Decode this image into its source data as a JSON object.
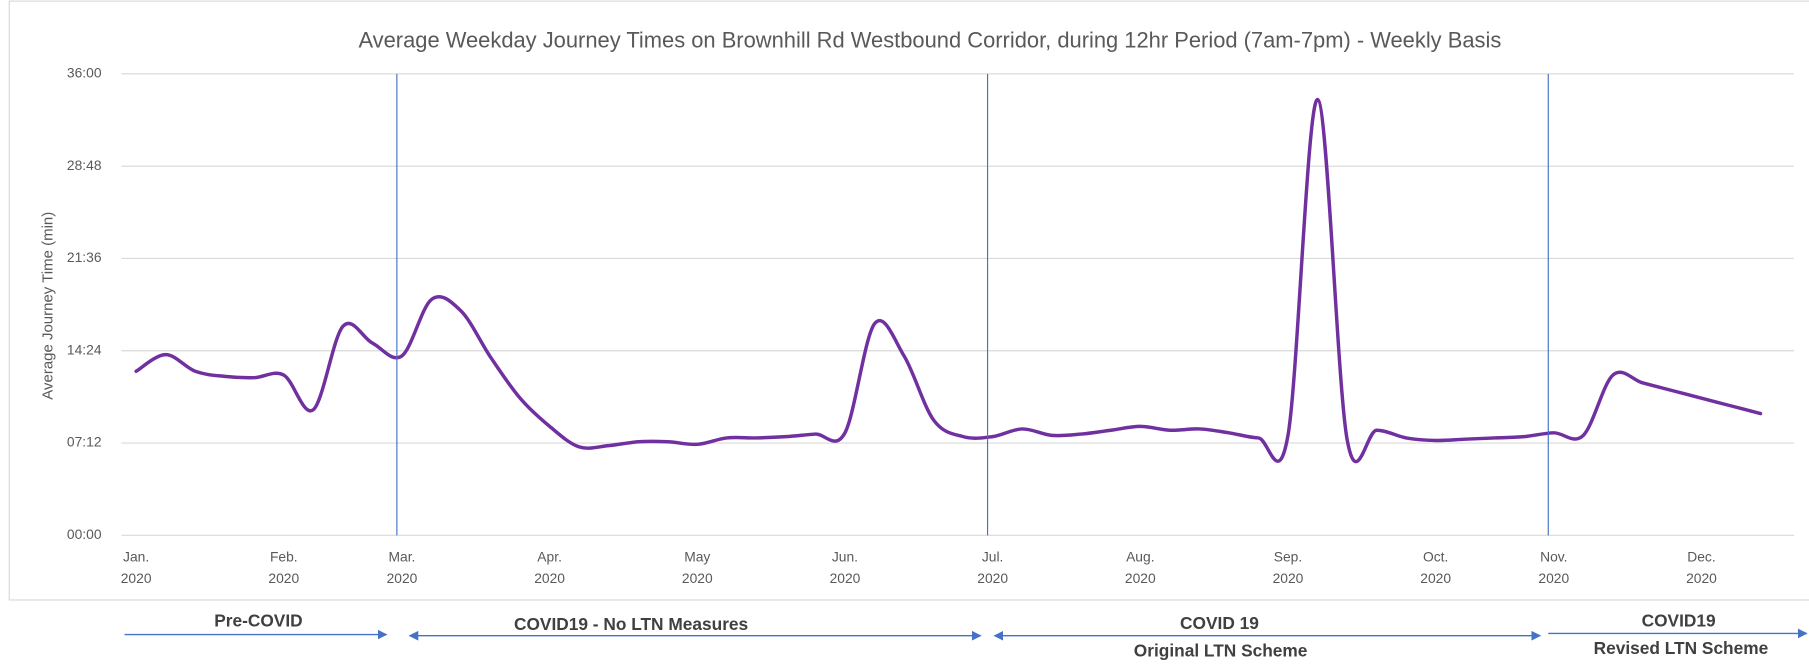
{
  "chart_data": {
    "type": "line",
    "title": "Average Weekday Journey Times on Brownhill Rd Westbound Corridor, during 12hr Period (7am-7pm) - Weekly Basis",
    "y_label": "Average Journey Time (min)",
    "categories": [
      "Jan. 2020",
      null,
      null,
      null,
      null,
      "Feb. 2020",
      null,
      null,
      null,
      "Mar. 2020",
      null,
      null,
      null,
      null,
      "Apr. 2020",
      null,
      null,
      null,
      null,
      "May 2020",
      null,
      null,
      null,
      null,
      "Jun. 2020",
      null,
      null,
      null,
      null,
      "Jul. 2020",
      null,
      null,
      null,
      null,
      "Aug. 2020",
      null,
      null,
      null,
      null,
      "Sep. 2020",
      null,
      null,
      null,
      null,
      "Oct. 2020",
      null,
      null,
      null,
      "Nov. 2020",
      null,
      null,
      null,
      null,
      "Dec. 2020",
      null,
      null
    ],
    "series": [
      {
        "name": "Average Journey Time",
        "color": "#7030a0",
        "values": [
          12.8,
          14.1,
          12.8,
          12.4,
          12.3,
          12.5,
          9.8,
          16.3,
          15.0,
          14.0,
          18.4,
          17.5,
          13.9,
          10.7,
          8.5,
          6.9,
          7.0,
          7.3,
          7.3,
          7.1,
          7.6,
          7.6,
          7.7,
          7.9,
          8.0,
          16.5,
          14.0,
          9.0,
          7.7,
          7.7,
          8.3,
          7.8,
          7.9,
          8.2,
          8.5,
          8.2,
          8.3,
          8.0,
          7.6,
          7.8,
          34.0,
          7.5,
          8.2,
          7.6,
          7.4,
          7.5,
          7.6,
          7.7,
          8.0,
          7.8,
          12.5,
          11.9,
          11.3,
          10.7,
          10.1,
          9.5
        ]
      }
    ],
    "ylim": [
      0,
      36
    ],
    "yticks": [
      {
        "value": 0,
        "label": "00:00"
      },
      {
        "value": 7.2,
        "label": "07:12"
      },
      {
        "value": 14.4,
        "label": "14:24"
      },
      {
        "value": 21.6,
        "label": "21:36"
      },
      {
        "value": 28.8,
        "label": "28:48"
      },
      {
        "value": 36,
        "label": "36:00"
      }
    ],
    "grid": true,
    "phases": [
      {
        "lines": [
          "Pre-COVID"
        ]
      },
      {
        "lines": [
          "COVID19 - No LTN Measures"
        ]
      },
      {
        "lines": [
          "COVID 19",
          "Original LTN Scheme"
        ]
      },
      {
        "lines": [
          "COVID19",
          "Revised LTN Scheme"
        ]
      }
    ]
  }
}
